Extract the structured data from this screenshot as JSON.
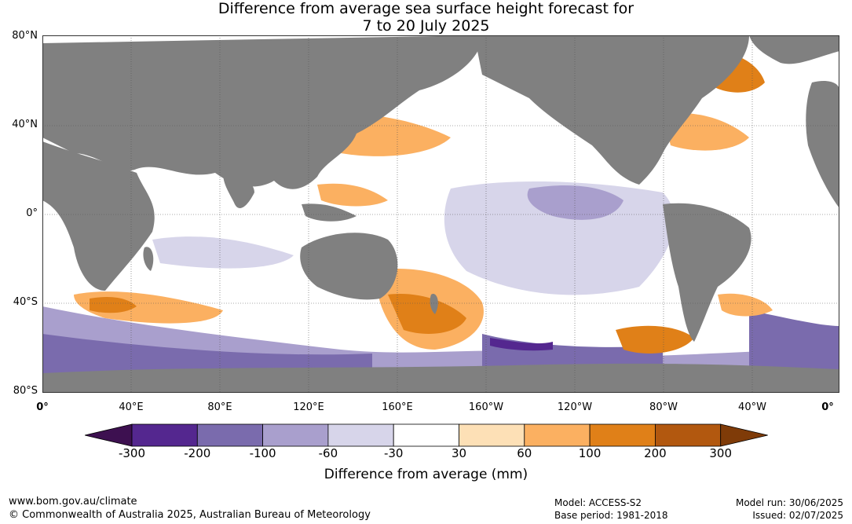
{
  "title_line1": "Difference from average sea surface height forecast for",
  "title_line2": "7 to 20 July 2025",
  "lat_labels": [
    "80°N",
    "40°N",
    "0°",
    "40°S",
    "80°S"
  ],
  "lon_labels": [
    "0°",
    "40°E",
    "80°E",
    "120°E",
    "160°E",
    "160°W",
    "120°W",
    "80°W",
    "40°W",
    "0°"
  ],
  "colorbar": {
    "ticks": [
      "-300",
      "-200",
      "-100",
      "-60",
      "-30",
      "30",
      "60",
      "100",
      "200",
      "300"
    ],
    "colors": [
      "#3d1050",
      "#54278f",
      "#7a6bad",
      "#a99fcd",
      "#d7d5ea",
      "#ffffff",
      "#fde0b6",
      "#fbb061",
      "#e08018",
      "#b2580f",
      "#7f3b08"
    ],
    "label": "Difference from average (mm)"
  },
  "colors": {
    "land": "#808080",
    "ocean_neutral": "#ffffff"
  },
  "footer": {
    "url": "www.bom.gov.au/climate",
    "copyright": "© Commonwealth of Australia 2025, Australian Bureau of Meteorology",
    "model": "Model: ACCESS-S2",
    "base_period": "Base period: 1981-2018",
    "model_run": "Model run: 30/06/2025",
    "issued": "Issued: 02/07/2025"
  }
}
